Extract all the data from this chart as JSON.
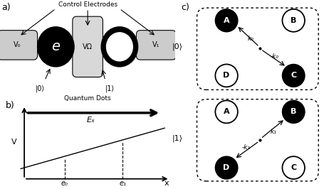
{
  "bg_color": "#ffffff",
  "fig_label_a": "a)",
  "fig_label_b": "b)",
  "fig_label_c": "c)",
  "panel_a": {
    "v0_label": "V₀",
    "vomega_label": "VΩ",
    "v1_label": "V₁",
    "e_label": "e",
    "state0_label": "|0⟩",
    "state1_label": "|1⟩",
    "control_label": "Control Electrodes",
    "dot_label": "Quantum Dots"
  },
  "panel_b": {
    "xlabel": "x",
    "ylabel": "V",
    "ex_label": "Eₓ",
    "e0_label": "e₀",
    "e1_label": "e₁"
  },
  "panel_c": {
    "state0_label": "|0⟩",
    "state1_label": "|1⟩",
    "k0_label": "k₀",
    "mk0_label": "-k₀",
    "k1_label": "k₁",
    "mk1_label": "-k₁"
  }
}
